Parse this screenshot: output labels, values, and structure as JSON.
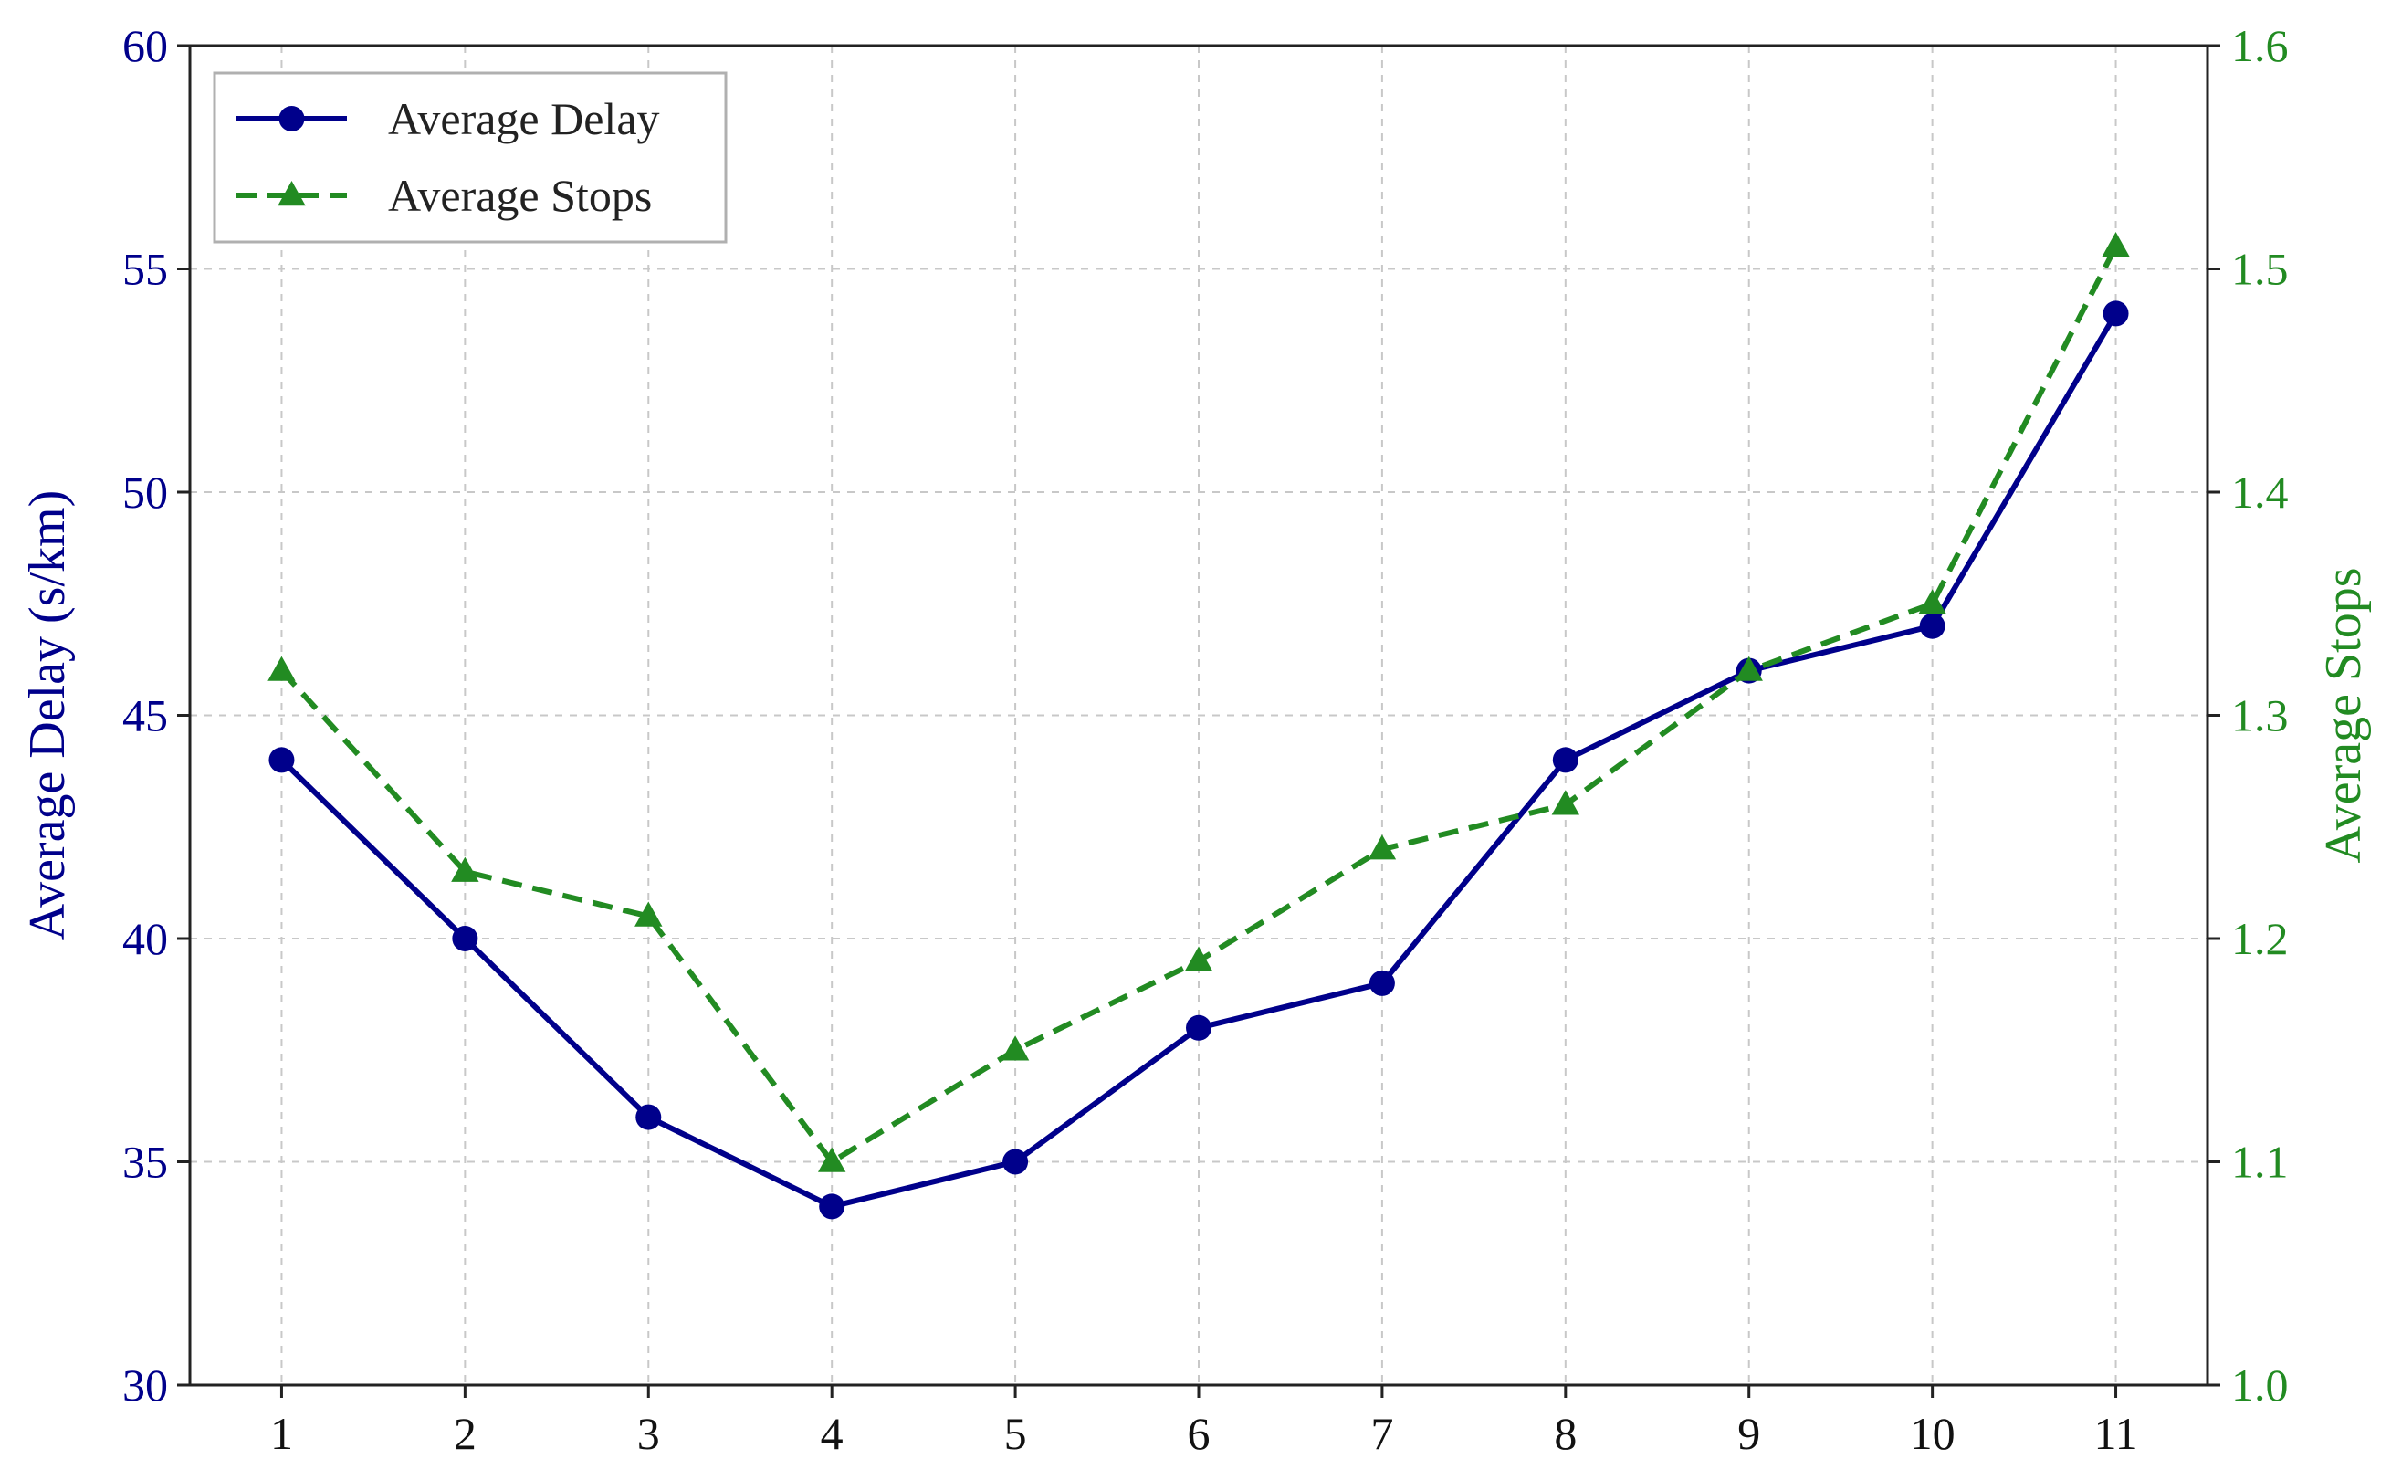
{
  "chart_data": {
    "type": "line",
    "categories": [
      "1",
      "2",
      "3",
      "4",
      "5",
      "6",
      "7",
      "8",
      "9",
      "10",
      "11"
    ],
    "x": [
      1,
      2,
      3,
      4,
      5,
      6,
      7,
      8,
      9,
      10,
      11
    ],
    "series": [
      {
        "name": "Average Delay",
        "axis": "left",
        "values": [
          44,
          40,
          36,
          34,
          35,
          38,
          39,
          44,
          46,
          47,
          54
        ],
        "color": "#00008B",
        "line_style": "solid",
        "marker": "circle"
      },
      {
        "name": "Average Stops",
        "axis": "right",
        "values": [
          1.32,
          1.23,
          1.21,
          1.1,
          1.15,
          1.19,
          1.24,
          1.26,
          1.32,
          1.35,
          1.51
        ],
        "color": "#228B22",
        "line_style": "dashed",
        "marker": "triangle"
      }
    ],
    "title": "",
    "xlabel": "",
    "ylabel": "Average Delay (s/km)",
    "y2label": "Average Stops",
    "ylim": [
      30,
      60
    ],
    "y2lim": [
      1.0,
      1.6
    ],
    "yticks": [
      "30",
      "35",
      "40",
      "45",
      "50",
      "55",
      "60"
    ],
    "y2ticks": [
      "1.0",
      "1.1",
      "1.2",
      "1.3",
      "1.4",
      "1.5",
      "1.6"
    ],
    "grid": true,
    "legend_position": "top-left",
    "left_axis_color": "#00008B",
    "right_axis_color": "#228B22"
  }
}
